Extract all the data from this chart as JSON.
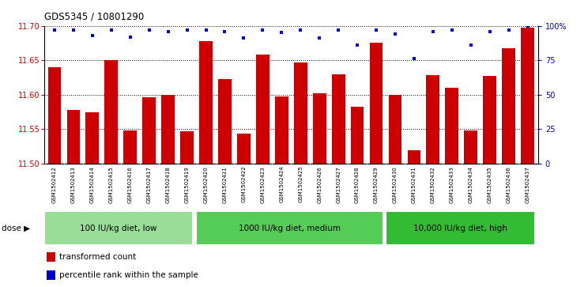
{
  "title": "GDS5345 / 10801290",
  "categories": [
    "GSM1502412",
    "GSM1502413",
    "GSM1502414",
    "GSM1502415",
    "GSM1502416",
    "GSM1502417",
    "GSM1502418",
    "GSM1502419",
    "GSM1502420",
    "GSM1502421",
    "GSM1502422",
    "GSM1502423",
    "GSM1502424",
    "GSM1502425",
    "GSM1502426",
    "GSM1502427",
    "GSM1502428",
    "GSM1502429",
    "GSM1502430",
    "GSM1502431",
    "GSM1502432",
    "GSM1502433",
    "GSM1502434",
    "GSM1502435",
    "GSM1502436",
    "GSM1502437"
  ],
  "values": [
    11.64,
    11.578,
    11.575,
    11.65,
    11.548,
    11.596,
    11.6,
    11.547,
    11.678,
    11.623,
    11.543,
    11.658,
    11.598,
    11.647,
    11.602,
    11.63,
    11.583,
    11.675,
    11.6,
    11.519,
    11.628,
    11.61,
    11.548,
    11.627,
    11.668,
    11.697
  ],
  "percentile_values": [
    97,
    97,
    93,
    97,
    92,
    97,
    96,
    97,
    97,
    96,
    91,
    97,
    95,
    97,
    91,
    97,
    86,
    97,
    94,
    76,
    96,
    97,
    86,
    96,
    97,
    100
  ],
  "bar_color": "#CC0000",
  "dot_color": "#0000CC",
  "ylim_left": [
    11.5,
    11.7
  ],
  "ylim_right": [
    0,
    100
  ],
  "yticks_left": [
    11.5,
    11.55,
    11.6,
    11.65,
    11.7
  ],
  "yticks_right": [
    0,
    25,
    50,
    75,
    100
  ],
  "ytick_labels_right": [
    "0",
    "25",
    "50",
    "75",
    "100%"
  ],
  "hlines": [
    11.55,
    11.6,
    11.65,
    11.7
  ],
  "group_labels": [
    "100 IU/kg diet, low",
    "1000 IU/kg diet, medium",
    "10,000 IU/kg diet, high"
  ],
  "group_ranges": [
    [
      0,
      8
    ],
    [
      8,
      18
    ],
    [
      18,
      26
    ]
  ],
  "group_colors": [
    "#99dd99",
    "#55cc55",
    "#33bb33"
  ],
  "dose_label": "dose",
  "legend_items": [
    {
      "color": "#CC0000",
      "label": "transformed count"
    },
    {
      "color": "#0000CC",
      "label": "percentile rank within the sample"
    }
  ],
  "xticklabel_bg": "#cccccc",
  "fig_bg": "#ffffff",
  "plot_bg": "#ffffff"
}
